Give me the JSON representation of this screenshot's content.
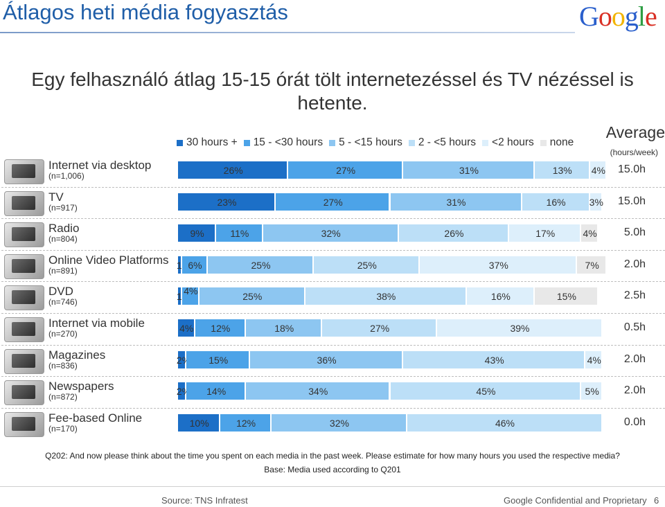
{
  "header": {
    "title": "Átlagos heti média fogyasztás",
    "logo_letters": [
      {
        "ch": "G",
        "color": "#2a5fcc"
      },
      {
        "ch": "o",
        "color": "#d93025"
      },
      {
        "ch": "o",
        "color": "#f2b400"
      },
      {
        "ch": "g",
        "color": "#2a5fcc"
      },
      {
        "ch": "l",
        "color": "#2e9e44"
      },
      {
        "ch": "e",
        "color": "#d93025"
      }
    ]
  },
  "subtitle": "Egy felhasználó átlag 15-15 órát tölt internetezéssel és TV nézéssel is hetente.",
  "average_header": "Average",
  "average_unit": "(hours/week)",
  "chart_data": {
    "type": "bar",
    "orientation": "horizontal-stacked-100",
    "legend_position": "top",
    "categories": [
      "Internet via desktop",
      "TV",
      "Radio",
      "Online Video Platforms",
      "DVD",
      "Internet via mobile",
      "Magazines",
      "Newspapers",
      "Fee-based Online"
    ],
    "sample_sizes": [
      "(n=1,006)",
      "(n=917)",
      "(n=804)",
      "(n=891)",
      "(n=746)",
      "(n=270)",
      "(n=836)",
      "(n=872)",
      "(n=170)"
    ],
    "averages": [
      "15.0h",
      "15.0h",
      "5.0h",
      "2.0h",
      "2.5h",
      "0.5h",
      "2.0h",
      "2.0h",
      "0.0h"
    ],
    "series": [
      {
        "name": "30 hours +",
        "color": "#1c6fc7",
        "values": [
          26,
          23,
          9,
          1,
          1,
          4,
          2,
          2,
          10
        ]
      },
      {
        "name": "15 - <30 hours",
        "color": "#4ca3e8",
        "values": [
          27,
          27,
          11,
          6,
          4,
          12,
          15,
          14,
          12
        ]
      },
      {
        "name": "5 - <15 hours",
        "color": "#8dc6f1",
        "values": [
          31,
          31,
          32,
          25,
          25,
          18,
          36,
          34,
          32
        ]
      },
      {
        "name": "2 - <5 hours",
        "color": "#bcdff7",
        "values": [
          13,
          16,
          26,
          25,
          38,
          27,
          43,
          45,
          46
        ]
      },
      {
        "name": "<2 hours",
        "color": "#ddeffb",
        "values": [
          4,
          3,
          17,
          37,
          16,
          39,
          4,
          5,
          0
        ]
      },
      {
        "name": "none",
        "color": "#e8e8e8",
        "values": [
          0,
          0,
          4,
          7,
          15,
          0,
          0,
          0,
          0
        ]
      }
    ],
    "labels": [
      [
        "26%",
        "27%",
        "31%",
        "13%",
        "4%",
        ""
      ],
      [
        "23%",
        "27%",
        "31%",
        "16%",
        "3%",
        ""
      ],
      [
        "9%",
        "11%",
        "32%",
        "26%",
        "17%",
        "4%"
      ],
      [
        "1%",
        "6%",
        "25%",
        "25%",
        "37%",
        "7%"
      ],
      [
        "1%",
        "4%",
        "25%",
        "38%",
        "16%",
        "15%"
      ],
      [
        "4%",
        "12%",
        "18%",
        "27%",
        "39%",
        ""
      ],
      [
        "2%",
        "15%",
        "36%",
        "43%",
        "4%",
        ""
      ],
      [
        "2%",
        "14%",
        "34%",
        "45%",
        "5%",
        ""
      ],
      [
        "10%",
        "12%",
        "32%",
        "46%",
        "",
        ""
      ]
    ],
    "xlim": [
      0,
      100
    ]
  },
  "footnote": {
    "question": "Q202: And now please think about the time you spent on each media in the past week. Please estimate for how many hours you used the respective media?",
    "base": "Base: Media used according to Q201"
  },
  "footer": {
    "source": "Source: TNS Infratest",
    "confidential": "Google Confidential and Proprietary",
    "page": "6"
  }
}
